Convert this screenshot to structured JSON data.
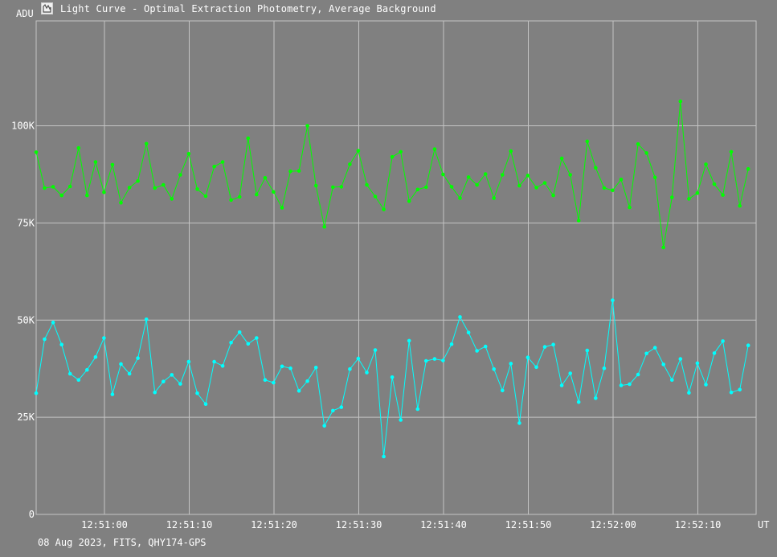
{
  "window": {
    "title": "Light Curve - Optimal Extraction Photometry, Average Background",
    "icon": "light-curve-app-icon"
  },
  "footer": {
    "caption": "08 Aug 2023, FITS, QHY174-GPS"
  },
  "colors": {
    "background": "#808080",
    "grid": "#c4c4c4",
    "series_green": "#00ff00",
    "series_cyan": "#00ffff"
  },
  "chart_data": {
    "type": "line",
    "title": "Light Curve - Optimal Extraction Photometry, Average Background",
    "xlabel": "UT",
    "ylabel": "ADU",
    "grid": true,
    "x_ticks": [
      "12:51:00",
      "12:51:10",
      "12:51:20",
      "12:51:30",
      "12:51:40",
      "12:51:50",
      "12:52:00",
      "12:52:10"
    ],
    "y_ticks": [
      "0",
      "25K",
      "50K",
      "75K",
      "100K"
    ],
    "y_tick_values": [
      0,
      25000,
      50000,
      75000,
      100000
    ],
    "ylim": [
      0,
      127000
    ],
    "x_start": "12:50:51.1",
    "x_step_seconds": 1,
    "series": [
      {
        "color": "#00ff00",
        "values": [
          93200,
          84000,
          84300,
          82100,
          84400,
          94300,
          82100,
          90700,
          82900,
          90000,
          80200,
          84100,
          85800,
          95400,
          84000,
          84800,
          81200,
          87400,
          92800,
          83700,
          81900,
          89500,
          90700,
          80900,
          81700,
          96800,
          82300,
          86600,
          83000,
          78900,
          88300,
          88400,
          100000,
          84600,
          74000,
          84200,
          84300,
          90100,
          93600,
          84800,
          81800,
          78500,
          92000,
          93300,
          80600,
          83600,
          84200,
          94000,
          87500,
          84300,
          81400,
          86800,
          84800,
          87600,
          81400,
          87400,
          93500,
          84600,
          87200,
          84100,
          85300,
          82100,
          91600,
          87400,
          75600,
          96000,
          89200,
          84000,
          83400,
          86200,
          79000,
          95300,
          93000,
          86700,
          68700,
          81600,
          106300,
          81200,
          82700,
          90100,
          85000,
          82200,
          93300,
          79400,
          88900
        ]
      },
      {
        "color": "#00ffff",
        "values": [
          31200,
          45100,
          49400,
          43700,
          36200,
          34600,
          37200,
          40500,
          45400,
          30900,
          38700,
          36200,
          40200,
          50200,
          31400,
          34200,
          35900,
          33600,
          39300,
          31200,
          28400,
          39300,
          38200,
          44200,
          46900,
          43900,
          45400,
          34600,
          33900,
          38100,
          37600,
          31800,
          34300,
          37800,
          22800,
          26700,
          27600,
          37400,
          40100,
          36500,
          42300,
          14900,
          35300,
          24300,
          44700,
          27100,
          39500,
          40000,
          39600,
          43800,
          50800,
          46800,
          42100,
          43200,
          37400,
          31900,
          38800,
          23500,
          40400,
          37900,
          43100,
          43700,
          33200,
          36300,
          28900,
          42200,
          29900,
          37600,
          55100,
          33200,
          33500,
          36000,
          41400,
          42900,
          38600,
          34600,
          40000,
          31300,
          38900,
          33400,
          41500,
          44600,
          31400,
          32100,
          43500
        ]
      }
    ]
  }
}
